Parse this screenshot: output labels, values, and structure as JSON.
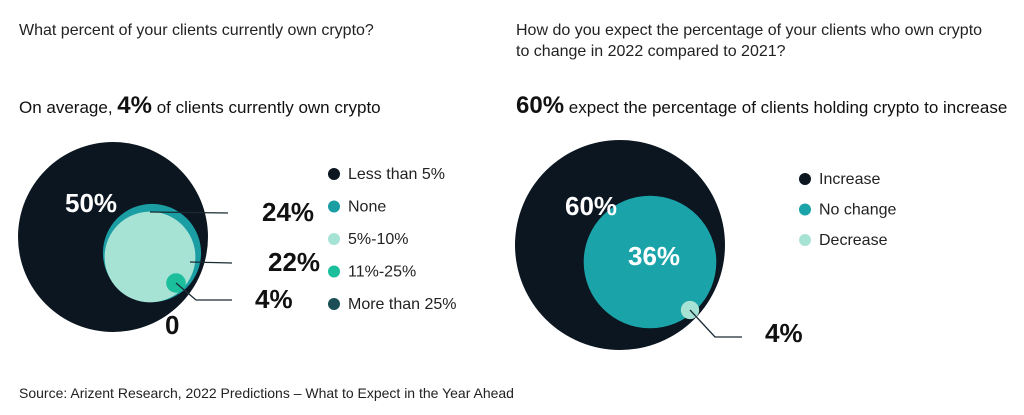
{
  "chart_data": [
    {
      "type": "circles",
      "title": "What percent of your clients currently own crypto?",
      "subtitle": [
        {
          "text": "On average,",
          "bold": false
        },
        {
          "text": "4%",
          "bold": true
        },
        {
          "text": "of clients currently own crypto",
          "bold": false
        }
      ],
      "categories": [
        "Less than 5%",
        "None",
        "5%-10%",
        "11%-25%",
        "More than 25%"
      ],
      "values": [
        50,
        24,
        22,
        4,
        0
      ],
      "value_labels": [
        "50%",
        "24%",
        "22%",
        "4%",
        "0"
      ],
      "colors": [
        "#0b1621",
        "#1a9ea3",
        "#a7e3d5",
        "#1bbf9c",
        "#1b4e55"
      ]
    },
    {
      "type": "circles",
      "title": "How do you expect the percentage of your clients who own crypto to change in 2022 compared to 2021?",
      "subtitle": [
        {
          "text": "60%",
          "bold": true
        },
        {
          "text": "expect the percentage of clients holding crypto to increase",
          "bold": false
        }
      ],
      "categories": [
        "Increase",
        "No change",
        "Decrease"
      ],
      "values": [
        60,
        36,
        4
      ],
      "value_labels": [
        "60%",
        "36%",
        "4%"
      ],
      "colors": [
        "#0b1621",
        "#1aa3a8",
        "#a7e3d5"
      ]
    }
  ],
  "source": "Source: Arizent Research, 2022 Predictions – What to Expect in the Year Ahead"
}
